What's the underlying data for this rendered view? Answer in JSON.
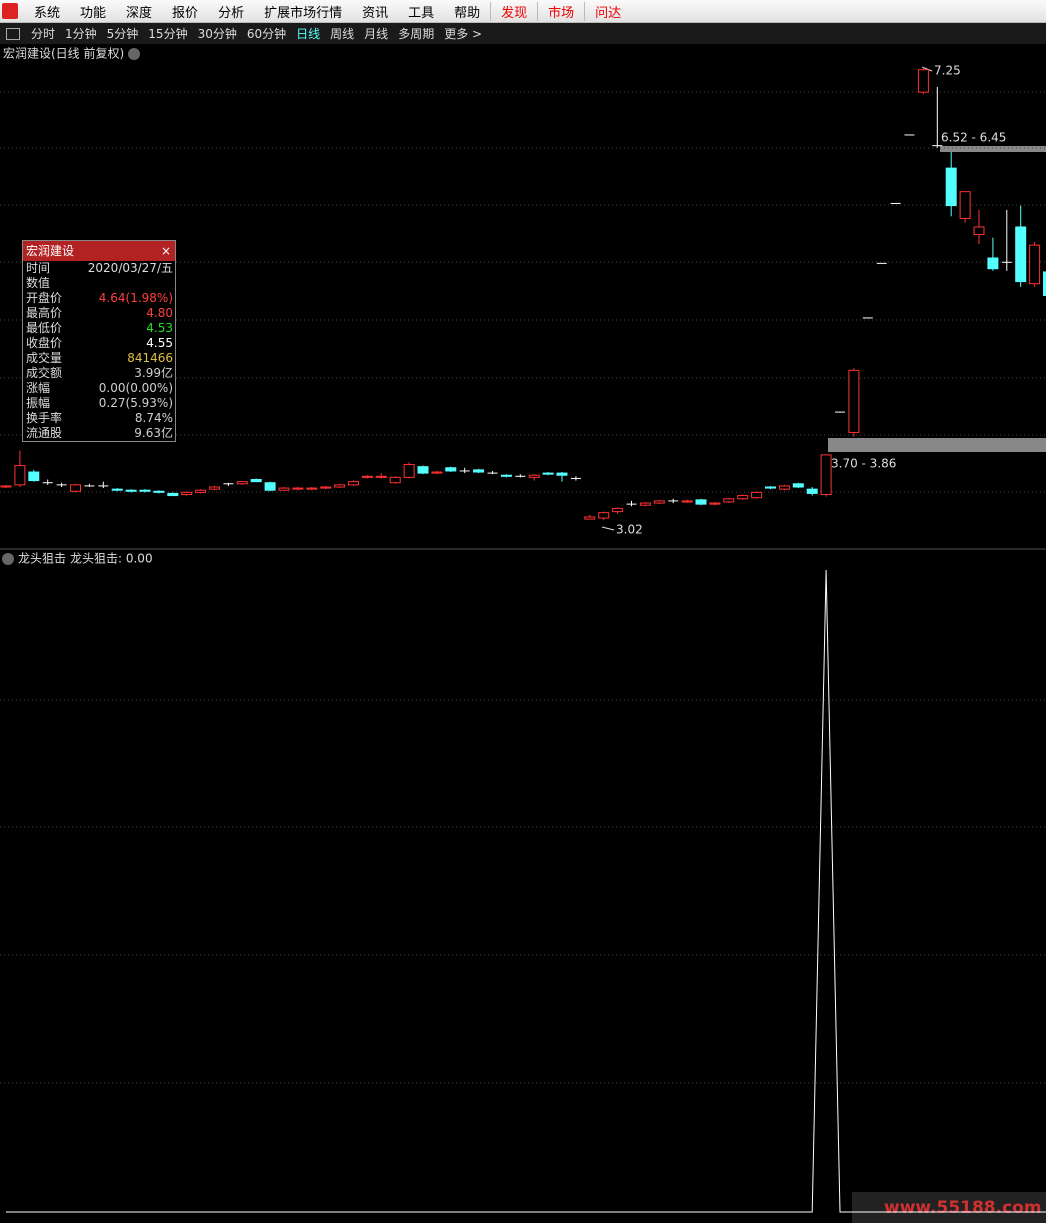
{
  "menu": [
    "系统",
    "功能",
    "深度",
    "报价",
    "分析",
    "扩展市场行情",
    "资讯",
    "工具",
    "帮助"
  ],
  "menu_right": [
    "发现",
    "市场",
    "问达"
  ],
  "toolbar": [
    "分时",
    "1分钟",
    "5分钟",
    "15分钟",
    "30分钟",
    "60分钟",
    "日线",
    "周线",
    "月线",
    "多周期",
    "更多 >"
  ],
  "toolbar_active": "日线",
  "info_panel": {
    "title": "宏润建设",
    "rows": [
      {
        "label": "时间",
        "value": "2020/03/27/五"
      },
      {
        "label": "数值"
      },
      {
        "label": "开盘价",
        "value": "4.64(1.98%)",
        "color": "#ff4040"
      },
      {
        "label": "最高价",
        "value": "4.80",
        "color": "#ff4040"
      },
      {
        "label": "最低价",
        "value": "4.53",
        "color": "#20e020"
      },
      {
        "label": "收盘价",
        "value": "4.55",
        "color": "#ffffff"
      },
      {
        "label": "成交量",
        "value": "841466",
        "color": "#e0c040"
      },
      {
        "label": "成交额",
        "value": "3.99亿",
        "color": "#d0d0d0"
      },
      {
        "label": "涨幅",
        "value": "0.00(0.00%)",
        "color": "#d0d0d0"
      },
      {
        "label": "振幅",
        "value": "0.27(5.93%)",
        "color": "#d0d0d0"
      },
      {
        "label": "换手率",
        "value": "8.74%",
        "color": "#d0d0d0"
      },
      {
        "label": "流通股",
        "value": "9.63亿",
        "color": "#d0d0d0"
      }
    ]
  },
  "watermark": "www.55188.com",
  "chart_data": [
    {
      "type": "candlestick",
      "title": "宏润建设(日线 前复权)",
      "up_color": "#ff3232",
      "down_color": "#54ffff",
      "flat_color": "#ffffff",
      "ylim": [
        2.76,
        7.47
      ],
      "open": [
        3.33,
        3.35,
        3.47,
        3.37,
        3.35,
        3.29,
        3.34,
        3.34,
        3.31,
        3.3,
        3.3,
        3.29,
        3.27,
        3.26,
        3.28,
        3.31,
        3.36,
        3.36,
        3.4,
        3.37,
        3.3,
        3.31,
        3.31,
        3.32,
        3.33,
        3.35,
        3.42,
        3.42,
        3.37,
        3.42,
        3.52,
        3.46,
        3.51,
        3.48,
        3.49,
        3.46,
        3.44,
        3.43,
        3.42,
        3.46,
        3.46,
        3.41,
        3.03,
        3.04,
        3.1,
        3.17,
        3.16,
        3.18,
        3.2,
        3.19,
        3.21,
        3.17,
        3.19,
        3.22,
        3.23,
        3.33,
        3.31,
        3.36,
        3.31,
        3.26,
        4.03,
        3.84,
        4.91,
        5.42,
        5.98,
        6.62,
        7.02,
        6.52,
        6.31,
        5.84,
        5.69,
        5.47,
        5.43,
        5.76,
        5.23,
        5.34
      ],
      "high": [
        3.35,
        3.67,
        3.49,
        3.4,
        3.37,
        3.36,
        3.36,
        3.38,
        3.32,
        3.31,
        3.31,
        3.3,
        3.28,
        3.29,
        3.31,
        3.34,
        3.37,
        3.38,
        3.41,
        3.38,
        3.33,
        3.33,
        3.33,
        3.34,
        3.36,
        3.39,
        3.44,
        3.46,
        3.43,
        3.56,
        3.53,
        3.48,
        3.52,
        3.51,
        3.5,
        3.48,
        3.45,
        3.45,
        3.45,
        3.47,
        3.47,
        3.43,
        3.07,
        3.1,
        3.14,
        3.2,
        3.19,
        3.21,
        3.22,
        3.21,
        3.22,
        3.19,
        3.23,
        3.26,
        3.29,
        3.34,
        3.35,
        3.37,
        3.33,
        3.63,
        4.03,
        4.44,
        4.91,
        5.42,
        5.98,
        6.62,
        7.25,
        7.07,
        6.46,
        6.09,
        5.92,
        5.66,
        5.92,
        5.96,
        5.62,
        5.4
      ],
      "low": [
        3.32,
        3.33,
        3.38,
        3.35,
        3.33,
        3.28,
        3.33,
        3.32,
        3.29,
        3.28,
        3.28,
        3.27,
        3.25,
        3.25,
        3.27,
        3.3,
        3.34,
        3.35,
        3.38,
        3.29,
        3.3,
        3.3,
        3.3,
        3.31,
        3.32,
        3.34,
        3.41,
        3.41,
        3.36,
        3.41,
        3.45,
        3.45,
        3.47,
        3.46,
        3.46,
        3.45,
        3.42,
        3.42,
        3.39,
        3.44,
        3.38,
        3.39,
        3.03,
        3.02,
        3.08,
        3.15,
        3.15,
        3.17,
        3.18,
        3.18,
        3.16,
        3.16,
        3.18,
        3.21,
        3.22,
        3.31,
        3.3,
        3.32,
        3.25,
        3.24,
        4.03,
        3.8,
        4.91,
        5.42,
        5.98,
        6.62,
        7.0,
        6.5,
        5.86,
        5.8,
        5.6,
        5.35,
        5.35,
        5.2,
        5.2,
        5.05
      ],
      "close": [
        3.34,
        3.53,
        3.39,
        3.37,
        3.35,
        3.35,
        3.34,
        3.34,
        3.3,
        3.29,
        3.29,
        3.28,
        3.25,
        3.28,
        3.3,
        3.33,
        3.36,
        3.38,
        3.38,
        3.3,
        3.32,
        3.32,
        3.32,
        3.33,
        3.35,
        3.38,
        3.43,
        3.43,
        3.42,
        3.54,
        3.46,
        3.47,
        3.48,
        3.48,
        3.47,
        3.46,
        3.43,
        3.43,
        3.44,
        3.45,
        3.44,
        3.41,
        3.05,
        3.09,
        3.13,
        3.17,
        3.18,
        3.2,
        3.2,
        3.2,
        3.17,
        3.18,
        3.22,
        3.25,
        3.28,
        3.32,
        3.34,
        3.33,
        3.27,
        3.63,
        4.03,
        4.42,
        4.91,
        5.42,
        5.98,
        6.62,
        7.23,
        6.52,
        5.96,
        6.09,
        5.76,
        5.37,
        5.43,
        5.25,
        5.59,
        5.12
      ],
      "annotations": [
        "7.25",
        "6.52 - 6.45",
        "3.70 - 3.86",
        "3.02"
      ]
    },
    {
      "type": "line",
      "title": "龙头狙击",
      "legend": "龙头狙击: 0.00",
      "color": "#ffffff",
      "ylim": [
        0,
        1
      ],
      "values": [
        0,
        0,
        0,
        0,
        0,
        0,
        0,
        0,
        0,
        0,
        0,
        0,
        0,
        0,
        0,
        0,
        0,
        0,
        0,
        0,
        0,
        0,
        0,
        0,
        0,
        0,
        0,
        0,
        0,
        0,
        0,
        0,
        0,
        0,
        0,
        0,
        0,
        0,
        0,
        0,
        0,
        0,
        0,
        0,
        0,
        0,
        0,
        0,
        0,
        0,
        0,
        0,
        0,
        0,
        0,
        0,
        0,
        0,
        0,
        1,
        0,
        0,
        0,
        0,
        0,
        0,
        0,
        0,
        0,
        0,
        0,
        0,
        0,
        0,
        0,
        0
      ]
    }
  ]
}
